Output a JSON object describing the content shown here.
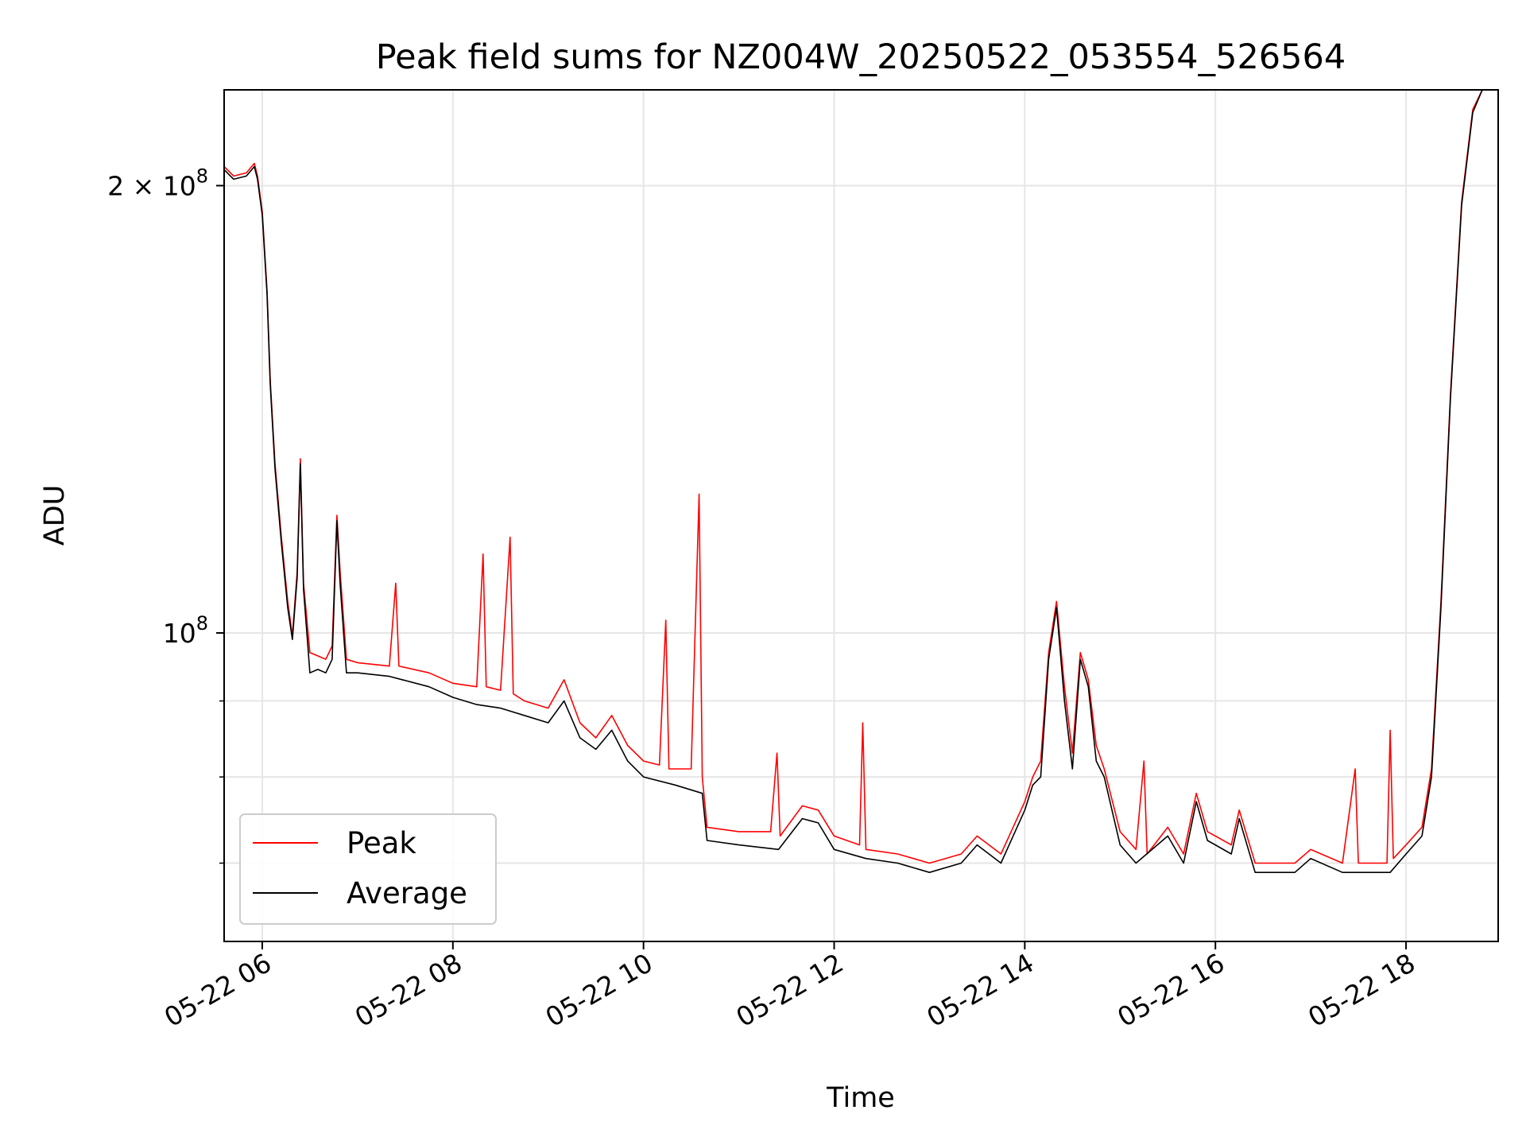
{
  "chart_data": {
    "type": "line",
    "title": "Peak field sums for NZ004W_20250522_053554_526564",
    "xlabel": "Time",
    "ylabel": "ADU",
    "yscale": "log",
    "xlim": [
      "2025-05-22 05:36",
      "2025-05-22 18:58"
    ],
    "ylim": [
      62000000.0,
      232000000.0
    ],
    "x_ticks": [
      {
        "label": "05-22 06",
        "value": "2025-05-22 06:00"
      },
      {
        "label": "05-22 08",
        "value": "2025-05-22 08:00"
      },
      {
        "label": "05-22 10",
        "value": "2025-05-22 10:00"
      },
      {
        "label": "05-22 12",
        "value": "2025-05-22 12:00"
      },
      {
        "label": "05-22 14",
        "value": "2025-05-22 14:00"
      },
      {
        "label": "05-22 16",
        "value": "2025-05-22 16:00"
      },
      {
        "label": "05-22 18",
        "value": "2025-05-22 18:00"
      }
    ],
    "y_ticks_major": [
      {
        "value": 100000000,
        "label_base": "10",
        "label_exp": "8",
        "label_coef": ""
      },
      {
        "value": 200000000,
        "label_base": "10",
        "label_exp": "8",
        "label_coef": "2 × "
      }
    ],
    "y_ticks_minor": [
      70000000,
      80000000,
      90000000
    ],
    "grid": true,
    "legend": {
      "position": "lower-left"
    },
    "series": [
      {
        "name": "Peak",
        "color": "#ff0000",
        "points": [
          [
            "2025-05-22 05:36",
            206000000.0
          ],
          [
            "2025-05-22 05:42",
            203000000.0
          ],
          [
            "2025-05-22 05:50",
            204000000.0
          ],
          [
            "2025-05-22 05:55",
            207000000.0
          ],
          [
            "2025-05-22 05:57",
            203000000.0
          ],
          [
            "2025-05-22 06:00",
            192000000.0
          ],
          [
            "2025-05-22 06:03",
            170000000.0
          ],
          [
            "2025-05-22 06:05",
            148000000.0
          ],
          [
            "2025-05-22 06:08",
            130000000.0
          ],
          [
            "2025-05-22 06:12",
            116000000.0
          ],
          [
            "2025-05-22 06:16",
            105000000.0
          ],
          [
            "2025-05-22 06:19",
            99500000.0
          ],
          [
            "2025-05-22 06:22",
            110000000.0
          ],
          [
            "2025-05-22 06:24",
            131000000.0
          ],
          [
            "2025-05-22 06:26",
            108000000.0
          ],
          [
            "2025-05-22 06:30",
            97000000.0
          ],
          [
            "2025-05-22 06:35",
            96500000.0
          ],
          [
            "2025-05-22 06:40",
            96000000.0
          ],
          [
            "2025-05-22 06:44",
            98000000.0
          ],
          [
            "2025-05-22 06:47",
            120000000.0
          ],
          [
            "2025-05-22 06:49",
            110000000.0
          ],
          [
            "2025-05-22 06:53",
            96000000.0
          ],
          [
            "2025-05-22 07:00",
            95500000.0
          ],
          [
            "2025-05-22 07:20",
            95000000.0
          ],
          [
            "2025-05-22 07:24",
            108000000.0
          ],
          [
            "2025-05-22 07:26",
            95000000.0
          ],
          [
            "2025-05-22 07:45",
            94000000.0
          ],
          [
            "2025-05-22 08:00",
            92500000.0
          ],
          [
            "2025-05-22 08:15",
            92000000.0
          ],
          [
            "2025-05-22 08:19",
            113000000.0
          ],
          [
            "2025-05-22 08:21",
            92000000.0
          ],
          [
            "2025-05-22 08:30",
            91500000.0
          ],
          [
            "2025-05-22 08:36",
            116000000.0
          ],
          [
            "2025-05-22 08:38",
            91000000.0
          ],
          [
            "2025-05-22 08:45",
            90000000.0
          ],
          [
            "2025-05-22 09:00",
            89000000.0
          ],
          [
            "2025-05-22 09:10",
            93000000.0
          ],
          [
            "2025-05-22 09:20",
            87000000.0
          ],
          [
            "2025-05-22 09:30",
            85000000.0
          ],
          [
            "2025-05-22 09:40",
            88000000.0
          ],
          [
            "2025-05-22 09:50",
            84000000.0
          ],
          [
            "2025-05-22 10:00",
            82000000.0
          ],
          [
            "2025-05-22 10:10",
            81500000.0
          ],
          [
            "2025-05-22 10:14",
            102000000.0
          ],
          [
            "2025-05-22 10:16",
            81000000.0
          ],
          [
            "2025-05-22 10:30",
            81000000.0
          ],
          [
            "2025-05-22 10:35",
            124000000.0
          ],
          [
            "2025-05-22 10:37",
            80000000.0
          ],
          [
            "2025-05-22 10:40",
            74000000.0
          ],
          [
            "2025-05-22 11:00",
            73500000.0
          ],
          [
            "2025-05-22 11:20",
            73500000.0
          ],
          [
            "2025-05-22 11:24",
            83000000.0
          ],
          [
            "2025-05-22 11:26",
            73000000.0
          ],
          [
            "2025-05-22 11:40",
            76500000.0
          ],
          [
            "2025-05-22 11:50",
            76000000.0
          ],
          [
            "2025-05-22 12:00",
            73000000.0
          ],
          [
            "2025-05-22 12:16",
            72000000.0
          ],
          [
            "2025-05-22 12:18",
            87000000.0
          ],
          [
            "2025-05-22 12:20",
            71500000.0
          ],
          [
            "2025-05-22 12:40",
            71000000.0
          ],
          [
            "2025-05-22 13:00",
            70000000.0
          ],
          [
            "2025-05-22 13:20",
            71000000.0
          ],
          [
            "2025-05-22 13:30",
            73000000.0
          ],
          [
            "2025-05-22 13:45",
            71000000.0
          ],
          [
            "2025-05-22 14:00",
            77000000.0
          ],
          [
            "2025-05-22 14:05",
            80000000.0
          ],
          [
            "2025-05-22 14:10",
            82000000.0
          ],
          [
            "2025-05-22 14:15",
            97000000.0
          ],
          [
            "2025-05-22 14:20",
            105000000.0
          ],
          [
            "2025-05-22 14:25",
            92000000.0
          ],
          [
            "2025-05-22 14:30",
            83000000.0
          ],
          [
            "2025-05-22 14:35",
            97000000.0
          ],
          [
            "2025-05-22 14:40",
            93000000.0
          ],
          [
            "2025-05-22 14:45",
            84000000.0
          ],
          [
            "2025-05-22 14:50",
            81000000.0
          ],
          [
            "2025-05-22 15:00",
            73500000.0
          ],
          [
            "2025-05-22 15:10",
            71500000.0
          ],
          [
            "2025-05-22 15:15",
            82000000.0
          ],
          [
            "2025-05-22 15:17",
            71000000.0
          ],
          [
            "2025-05-22 15:30",
            74000000.0
          ],
          [
            "2025-05-22 15:40",
            71000000.0
          ],
          [
            "2025-05-22 15:48",
            78000000.0
          ],
          [
            "2025-05-22 15:55",
            73500000.0
          ],
          [
            "2025-05-22 16:10",
            72000000.0
          ],
          [
            "2025-05-22 16:15",
            76000000.0
          ],
          [
            "2025-05-22 16:25",
            70000000.0
          ],
          [
            "2025-05-22 16:50",
            70000000.0
          ],
          [
            "2025-05-22 17:00",
            71500000.0
          ],
          [
            "2025-05-22 17:20",
            70000000.0
          ],
          [
            "2025-05-22 17:28",
            81000000.0
          ],
          [
            "2025-05-22 17:30",
            70000000.0
          ],
          [
            "2025-05-22 17:48",
            70000000.0
          ],
          [
            "2025-05-22 17:50",
            86000000.0
          ],
          [
            "2025-05-22 17:52",
            70500000.0
          ],
          [
            "2025-05-22 18:00",
            72000000.0
          ],
          [
            "2025-05-22 18:10",
            74000000.0
          ],
          [
            "2025-05-22 18:16",
            81000000.0
          ],
          [
            "2025-05-22 18:22",
            105000000.0
          ],
          [
            "2025-05-22 18:28",
            145000000.0
          ],
          [
            "2025-05-22 18:35",
            195000000.0
          ],
          [
            "2025-05-22 18:42",
            225000000.0
          ],
          [
            "2025-05-22 18:48",
            232000000.0
          ],
          [
            "2025-05-22 18:58",
            232000000.0
          ]
        ]
      },
      {
        "name": "Average",
        "color": "#000000",
        "points": [
          [
            "2025-05-22 05:36",
            205000000.0
          ],
          [
            "2025-05-22 05:42",
            202000000.0
          ],
          [
            "2025-05-22 05:50",
            203000000.0
          ],
          [
            "2025-05-22 05:55",
            206000000.0
          ],
          [
            "2025-05-22 05:57",
            202000000.0
          ],
          [
            "2025-05-22 06:00",
            191000000.0
          ],
          [
            "2025-05-22 06:03",
            169000000.0
          ],
          [
            "2025-05-22 06:05",
            147000000.0
          ],
          [
            "2025-05-22 06:08",
            129000000.0
          ],
          [
            "2025-05-22 06:12",
            115000000.0
          ],
          [
            "2025-05-22 06:16",
            104000000.0
          ],
          [
            "2025-05-22 06:19",
            99000000.0
          ],
          [
            "2025-05-22 06:22",
            109000000.0
          ],
          [
            "2025-05-22 06:24",
            130000000.0
          ],
          [
            "2025-05-22 06:26",
            107000000.0
          ],
          [
            "2025-05-22 06:30",
            94000000.0
          ],
          [
            "2025-05-22 06:35",
            94500000.0
          ],
          [
            "2025-05-22 06:40",
            94000000.0
          ],
          [
            "2025-05-22 06:44",
            96000000.0
          ],
          [
            "2025-05-22 06:47",
            119000000.0
          ],
          [
            "2025-05-22 06:49",
            108000000.0
          ],
          [
            "2025-05-22 06:53",
            94000000.0
          ],
          [
            "2025-05-22 07:00",
            94000000.0
          ],
          [
            "2025-05-22 07:20",
            93500000.0
          ],
          [
            "2025-05-22 07:45",
            92000000.0
          ],
          [
            "2025-05-22 08:00",
            90500000.0
          ],
          [
            "2025-05-22 08:15",
            89500000.0
          ],
          [
            "2025-05-22 08:30",
            89000000.0
          ],
          [
            "2025-05-22 08:45",
            88000000.0
          ],
          [
            "2025-05-22 09:00",
            87000000.0
          ],
          [
            "2025-05-22 09:10",
            90000000.0
          ],
          [
            "2025-05-22 09:20",
            85000000.0
          ],
          [
            "2025-05-22 09:30",
            83500000.0
          ],
          [
            "2025-05-22 09:40",
            86000000.0
          ],
          [
            "2025-05-22 09:50",
            82000000.0
          ],
          [
            "2025-05-22 10:00",
            80000000.0
          ],
          [
            "2025-05-22 10:20",
            79000000.0
          ],
          [
            "2025-05-22 10:37",
            78000000.0
          ],
          [
            "2025-05-22 10:40",
            72500000.0
          ],
          [
            "2025-05-22 11:00",
            72000000.0
          ],
          [
            "2025-05-22 11:25",
            71500000.0
          ],
          [
            "2025-05-22 11:40",
            75000000.0
          ],
          [
            "2025-05-22 11:50",
            74500000.0
          ],
          [
            "2025-05-22 12:00",
            71500000.0
          ],
          [
            "2025-05-22 12:20",
            70500000.0
          ],
          [
            "2025-05-22 12:40",
            70000000.0
          ],
          [
            "2025-05-22 13:00",
            69000000.0
          ],
          [
            "2025-05-22 13:20",
            70000000.0
          ],
          [
            "2025-05-22 13:30",
            72000000.0
          ],
          [
            "2025-05-22 13:45",
            70000000.0
          ],
          [
            "2025-05-22 14:00",
            76000000.0
          ],
          [
            "2025-05-22 14:05",
            79000000.0
          ],
          [
            "2025-05-22 14:10",
            80000000.0
          ],
          [
            "2025-05-22 14:15",
            96000000.0
          ],
          [
            "2025-05-22 14:20",
            104000000.0
          ],
          [
            "2025-05-22 14:25",
            90000000.0
          ],
          [
            "2025-05-22 14:30",
            81000000.0
          ],
          [
            "2025-05-22 14:35",
            96000000.0
          ],
          [
            "2025-05-22 14:40",
            92000000.0
          ],
          [
            "2025-05-22 14:45",
            82000000.0
          ],
          [
            "2025-05-22 14:50",
            80000000.0
          ],
          [
            "2025-05-22 15:00",
            72000000.0
          ],
          [
            "2025-05-22 15:10",
            70000000.0
          ],
          [
            "2025-05-22 15:30",
            73000000.0
          ],
          [
            "2025-05-22 15:40",
            70000000.0
          ],
          [
            "2025-05-22 15:48",
            77000000.0
          ],
          [
            "2025-05-22 15:55",
            72500000.0
          ],
          [
            "2025-05-22 16:10",
            71000000.0
          ],
          [
            "2025-05-22 16:15",
            75000000.0
          ],
          [
            "2025-05-22 16:25",
            69000000.0
          ],
          [
            "2025-05-22 16:50",
            69000000.0
          ],
          [
            "2025-05-22 17:00",
            70500000.0
          ],
          [
            "2025-05-22 17:20",
            69000000.0
          ],
          [
            "2025-05-22 17:50",
            69000000.0
          ],
          [
            "2025-05-22 18:00",
            71000000.0
          ],
          [
            "2025-05-22 18:10",
            73000000.0
          ],
          [
            "2025-05-22 18:16",
            80000000.0
          ],
          [
            "2025-05-22 18:22",
            104000000.0
          ],
          [
            "2025-05-22 18:28",
            144000000.0
          ],
          [
            "2025-05-22 18:35",
            194000000.0
          ],
          [
            "2025-05-22 18:42",
            224000000.0
          ],
          [
            "2025-05-22 18:48",
            232000000.0
          ],
          [
            "2025-05-22 18:58",
            232000000.0
          ]
        ]
      }
    ]
  }
}
